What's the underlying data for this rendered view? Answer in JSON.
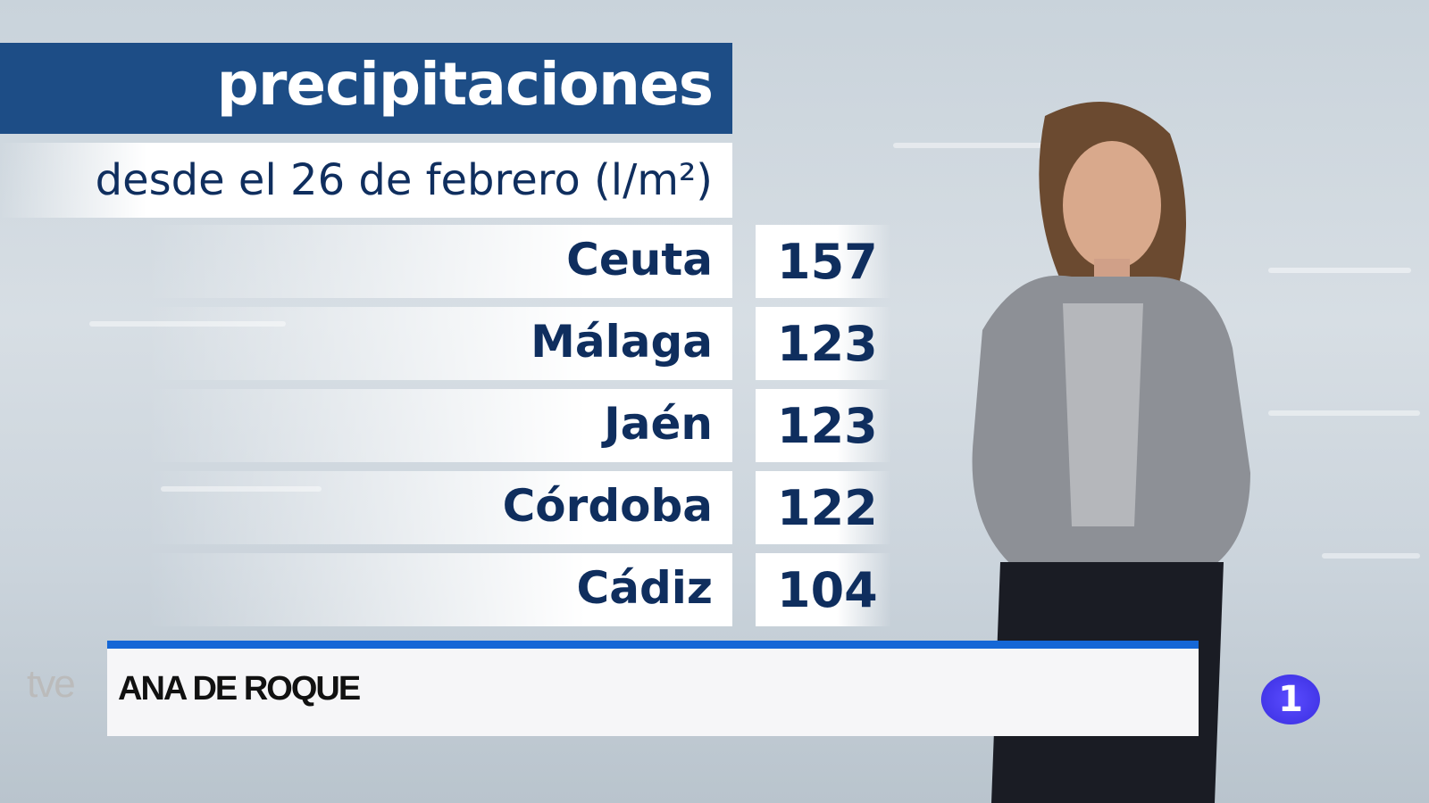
{
  "graphic": {
    "title": "precipitaciones",
    "subtitle": "desde el 26 de febrero (l/m²)"
  },
  "rows": [
    {
      "city": "Ceuta",
      "value": "157"
    },
    {
      "city": "Málaga",
      "value": "123"
    },
    {
      "city": "Jaén",
      "value": "123"
    },
    {
      "city": "Córdoba",
      "value": "122"
    },
    {
      "city": "Cádiz",
      "value": "104"
    }
  ],
  "lower_third": {
    "name": "ANA DE ROQUE"
  },
  "logos": {
    "network": "tve",
    "channel": "1"
  },
  "colors": {
    "title_bar": "#1d4d86",
    "text": "#0f2e5e",
    "lower_third_accent": "#1567d6",
    "channel_badge": "#3a2ee0"
  }
}
